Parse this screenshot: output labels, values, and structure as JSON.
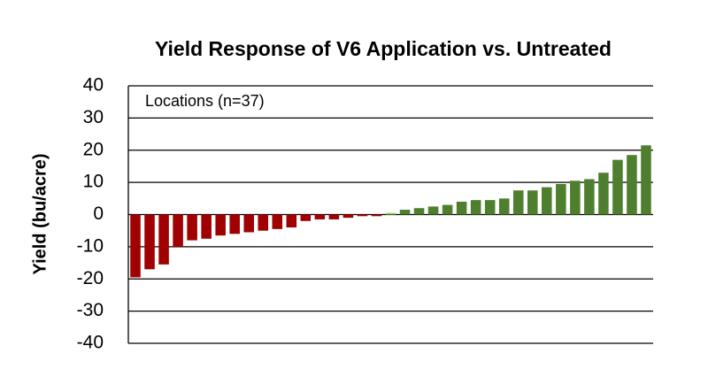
{
  "chart_data": {
    "type": "bar",
    "title": "Yield Response of V6 Application vs. Untreated",
    "y_label": "Yield (bu/acre)",
    "annotation": "Locations (n=37)",
    "values": [
      -19.5,
      -17,
      -15.5,
      -10,
      -8,
      -7.5,
      -6.5,
      -6,
      -5.5,
      -5,
      -4.5,
      -4,
      -2,
      -1.5,
      -1.5,
      -1,
      -0.5,
      -0.5,
      0.5,
      1.5,
      2,
      2.5,
      3,
      4,
      4.5,
      4.5,
      5,
      7.5,
      7.5,
      8.5,
      9.5,
      10.5,
      11,
      13,
      17,
      18.5,
      21.5
    ],
    "colors": [
      "#a00000",
      "#a00000",
      "#a00000",
      "#a00000",
      "#a00000",
      "#a00000",
      "#a00000",
      "#a00000",
      "#a00000",
      "#a00000",
      "#a00000",
      "#a00000",
      "#a00000",
      "#a00000",
      "#a00000",
      "#a00000",
      "#a00000",
      "#a00000",
      "#92d050",
      "#4e7f2e",
      "#4e7f2e",
      "#4e7f2e",
      "#4e7f2e",
      "#4e7f2e",
      "#4e7f2e",
      "#4e7f2e",
      "#4e7f2e",
      "#4e7f2e",
      "#4e7f2e",
      "#4e7f2e",
      "#4e7f2e",
      "#4e7f2e",
      "#4e7f2e",
      "#4e7f2e",
      "#4e7f2e",
      "#4e7f2e",
      "#4e7f2e"
    ],
    "ylim": [
      -40,
      40
    ],
    "yticks": [
      -40,
      -30,
      -20,
      -10,
      0,
      10,
      20,
      30,
      40
    ],
    "grid": true
  }
}
